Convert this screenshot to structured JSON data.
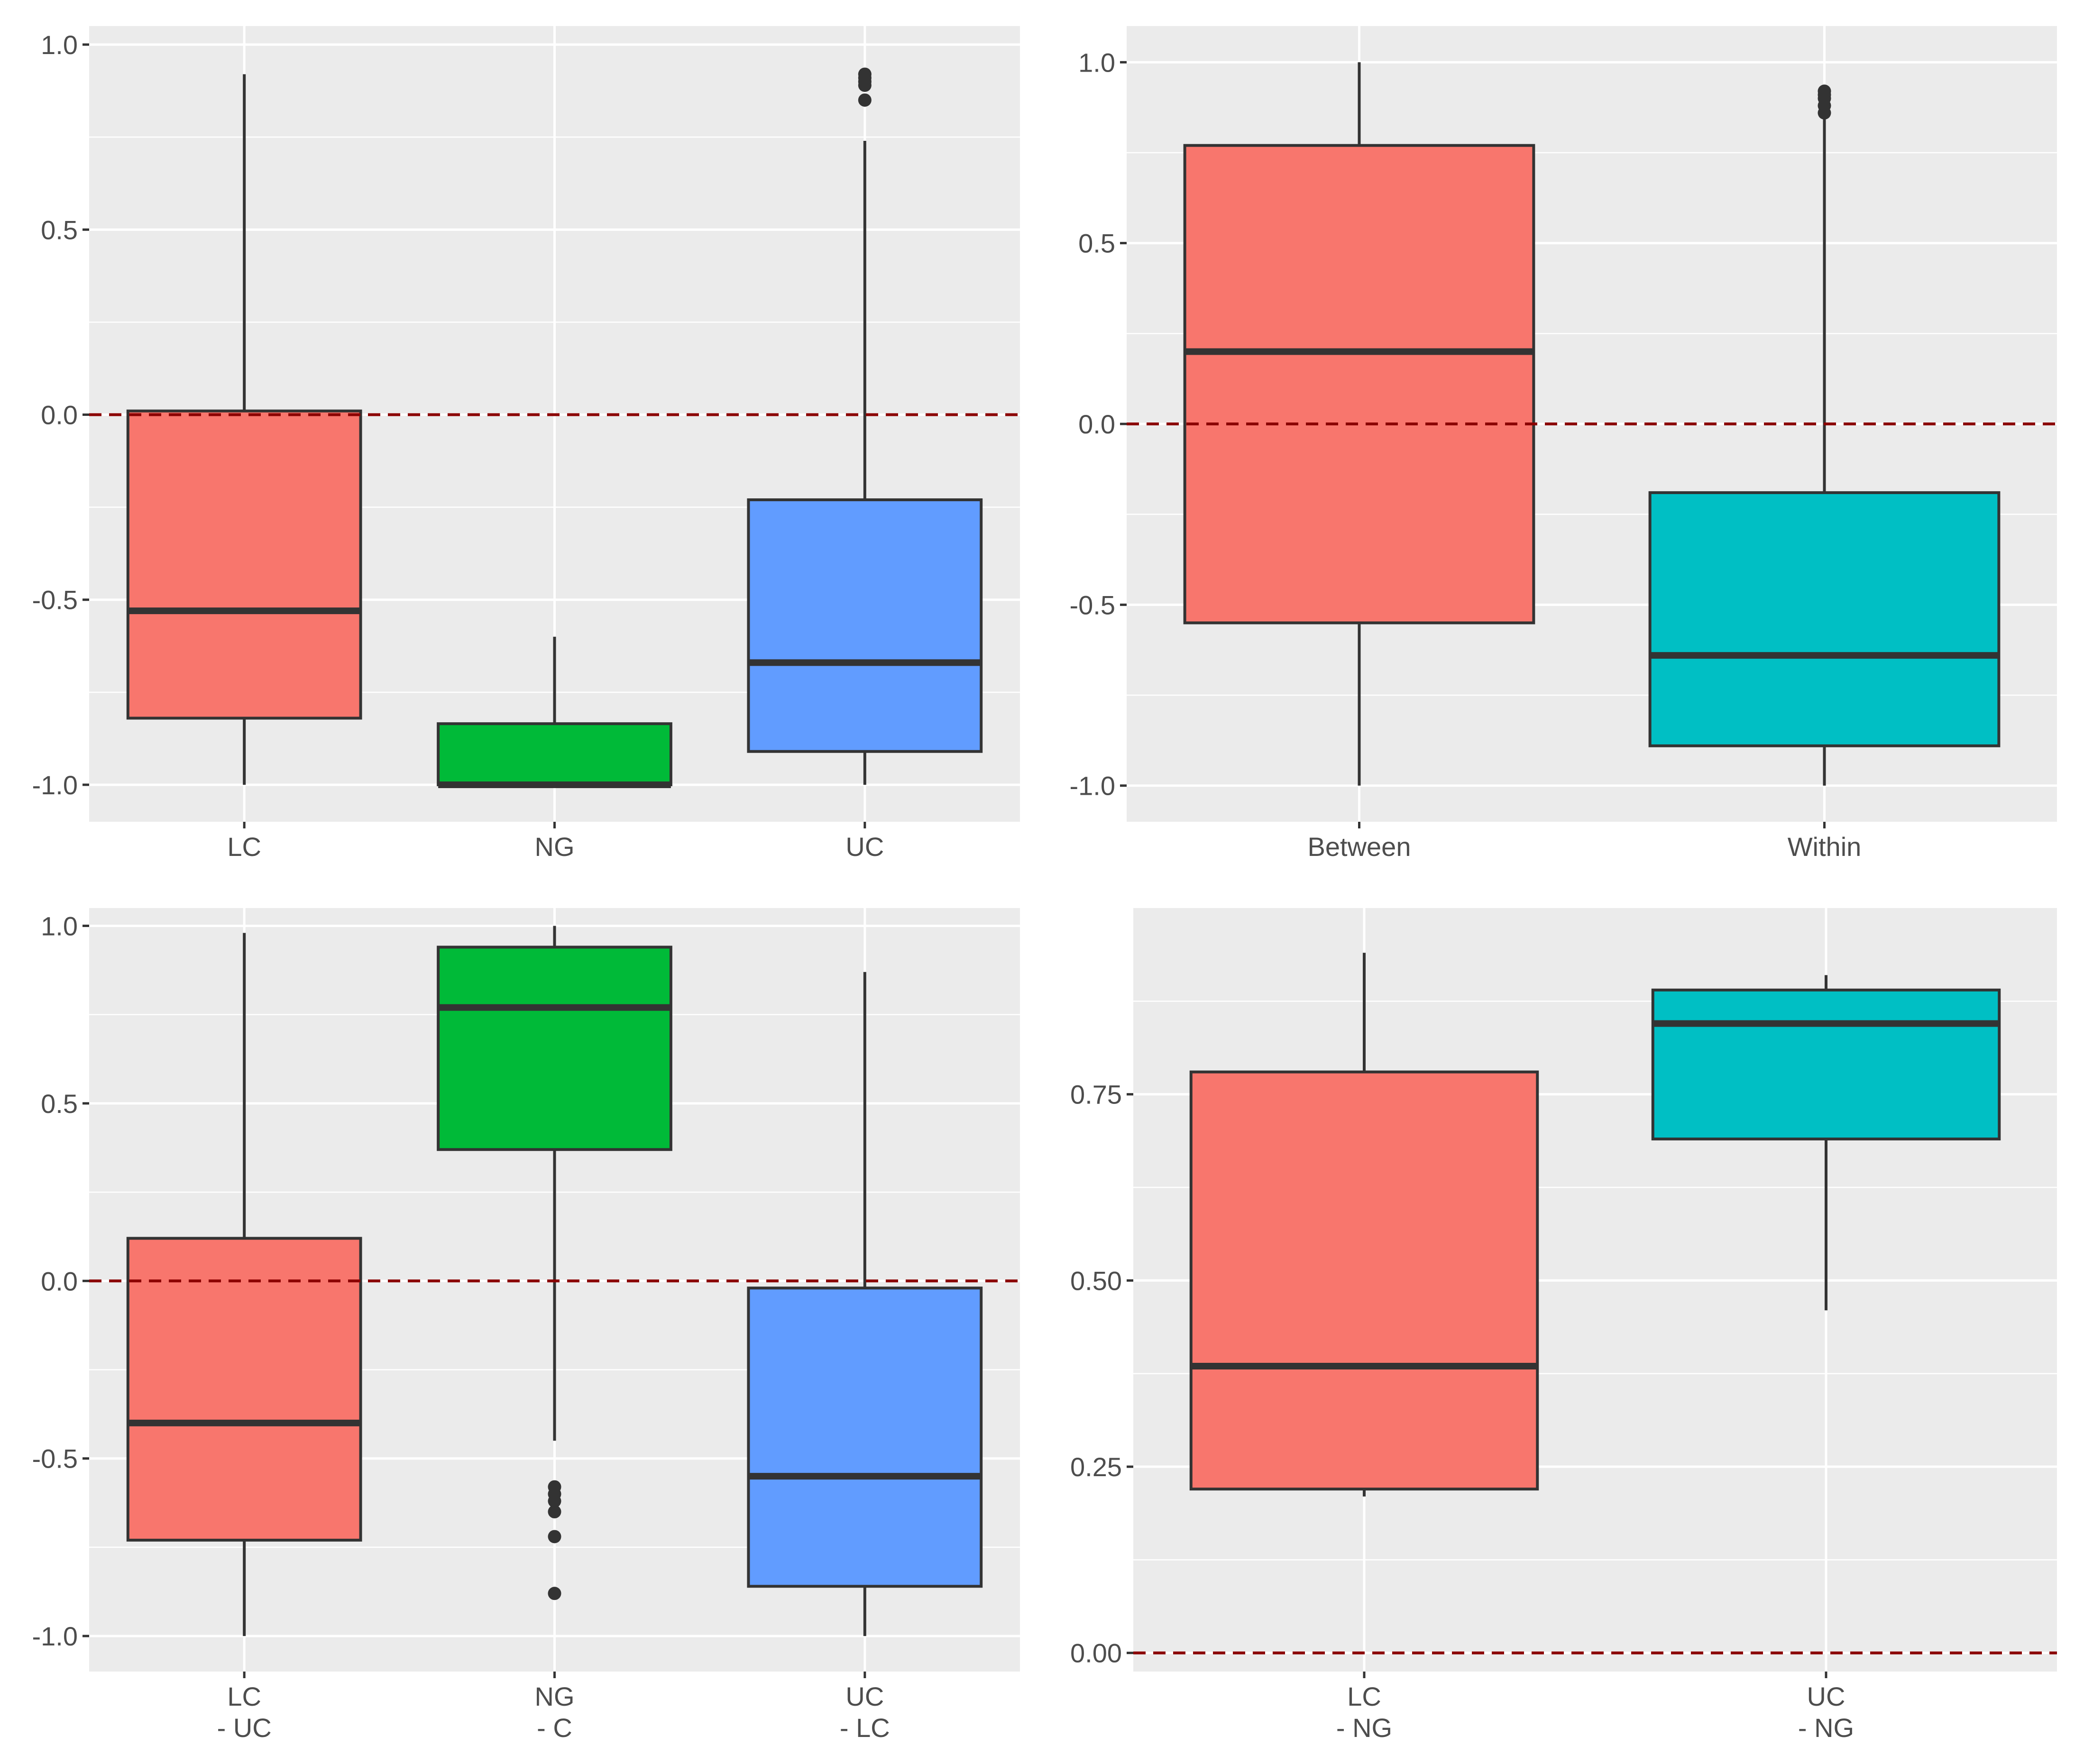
{
  "colors": {
    "red": "#F8766D",
    "green": "#00BA38",
    "blue": "#619CFF",
    "teal": "#00BFC4",
    "refline": "#8B0000"
  },
  "chart_data": [
    {
      "type": "boxplot",
      "id": "top-left",
      "ylim": [
        -1.1,
        1.05
      ],
      "yticks": [
        1.0,
        0.5,
        0.0,
        -0.5,
        -1.0
      ],
      "ytick_labels": [
        "1.0",
        "0.5",
        "0.0",
        "-0.5",
        "-1.0"
      ],
      "refline": 0.0,
      "categories": [
        {
          "label": [
            "LC"
          ],
          "color": "red",
          "whisker_low": -1.0,
          "q1": -0.82,
          "median": -0.53,
          "q3": 0.01,
          "whisker_high": 0.92,
          "outliers": []
        },
        {
          "label": [
            "NG"
          ],
          "color": "green",
          "whisker_low": -1.0,
          "q1": -1.0,
          "median": -1.0,
          "q3": -0.835,
          "whisker_high": -0.6,
          "outliers": []
        },
        {
          "label": [
            "UC"
          ],
          "color": "blue",
          "whisker_low": -1.0,
          "q1": -0.91,
          "median": -0.67,
          "q3": -0.23,
          "whisker_high": 0.74,
          "outliers": [
            0.85,
            0.89,
            0.9,
            0.91,
            0.92
          ]
        }
      ]
    },
    {
      "type": "boxplot",
      "id": "top-right",
      "ylim": [
        -1.1,
        1.1
      ],
      "yticks": [
        1.0,
        0.5,
        0.0,
        -0.5,
        -1.0
      ],
      "ytick_labels": [
        "1.0",
        "0.5",
        "0.0",
        "-0.5",
        "-1.0"
      ],
      "refline": 0.0,
      "categories": [
        {
          "label": [
            "Between"
          ],
          "color": "red",
          "whisker_low": -1.0,
          "q1": -0.55,
          "median": 0.2,
          "q3": 0.77,
          "whisker_high": 1.0,
          "outliers": []
        },
        {
          "label": [
            "Within"
          ],
          "color": "teal",
          "whisker_low": -1.0,
          "q1": -0.89,
          "median": -0.64,
          "q3": -0.19,
          "whisker_high": 0.86,
          "outliers": [
            0.86,
            0.88,
            0.9,
            0.91,
            0.92
          ]
        }
      ]
    },
    {
      "type": "boxplot",
      "id": "bottom-left",
      "ylim": [
        -1.1,
        1.05
      ],
      "yticks": [
        1.0,
        0.5,
        0.0,
        -0.5,
        -1.0
      ],
      "ytick_labels": [
        "1.0",
        "0.5",
        "0.0",
        "-0.5",
        "-1.0"
      ],
      "refline": 0.0,
      "categories": [
        {
          "label": [
            "LC",
            "- UC"
          ],
          "color": "red",
          "whisker_low": -1.0,
          "q1": -0.73,
          "median": -0.4,
          "q3": 0.12,
          "whisker_high": 0.98,
          "outliers": []
        },
        {
          "label": [
            "NG",
            "- C"
          ],
          "color": "green",
          "whisker_low": -0.45,
          "q1": 0.37,
          "median": 0.77,
          "q3": 0.94,
          "whisker_high": 1.0,
          "outliers": [
            -0.58,
            -0.6,
            -0.62,
            -0.65,
            -0.72,
            -0.88
          ]
        },
        {
          "label": [
            "UC",
            "- LC"
          ],
          "color": "blue",
          "whisker_low": -1.0,
          "q1": -0.86,
          "median": -0.55,
          "q3": -0.02,
          "whisker_high": 0.87,
          "outliers": []
        }
      ]
    },
    {
      "type": "boxplot",
      "id": "bottom-right",
      "ylim": [
        -0.025,
        1.0
      ],
      "yticks": [
        0.75,
        0.5,
        0.25,
        0.0
      ],
      "ytick_labels": [
        "0.75",
        "0.50",
        "0.25",
        "0.00"
      ],
      "refline": 0.0,
      "categories": [
        {
          "label": [
            "LC",
            "- NG"
          ],
          "color": "red",
          "whisker_low": 0.21,
          "q1": 0.22,
          "median": 0.385,
          "q3": 0.78,
          "whisker_high": 0.94,
          "outliers": []
        },
        {
          "label": [
            "UC",
            "- NG"
          ],
          "color": "teal",
          "whisker_low": 0.46,
          "q1": 0.69,
          "median": 0.845,
          "q3": 0.89,
          "whisker_high": 0.91,
          "outliers": []
        }
      ]
    }
  ]
}
